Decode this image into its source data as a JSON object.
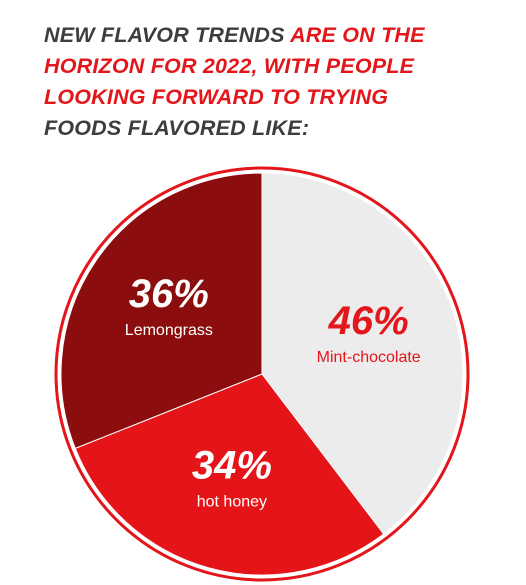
{
  "headline": {
    "line1_dark": "NEW FLAVOR TRENDS ",
    "line1_red": "ARE ON THE",
    "line2_red": "HORIZON FOR 2022, WITH PEOPLE",
    "line3_red": "LOOKING FORWARD TO TRYING",
    "line4_dark": "FOODS FLAVORED LIKE:"
  },
  "colors": {
    "dark_text": "#3d3d3d",
    "brand_red": "#e3161b",
    "lemongrass": "#8b0d0d",
    "hot_honey": "#e41418",
    "mint_chocolate": "#ececec",
    "outline": "#e3161b"
  },
  "chart_data": {
    "type": "pie",
    "title": "",
    "categories": [
      "Mint-chocolate",
      "hot honey",
      "Lemongrass"
    ],
    "values": [
      46,
      34,
      36
    ],
    "labels": [
      "46%",
      "34%",
      "36%"
    ]
  }
}
